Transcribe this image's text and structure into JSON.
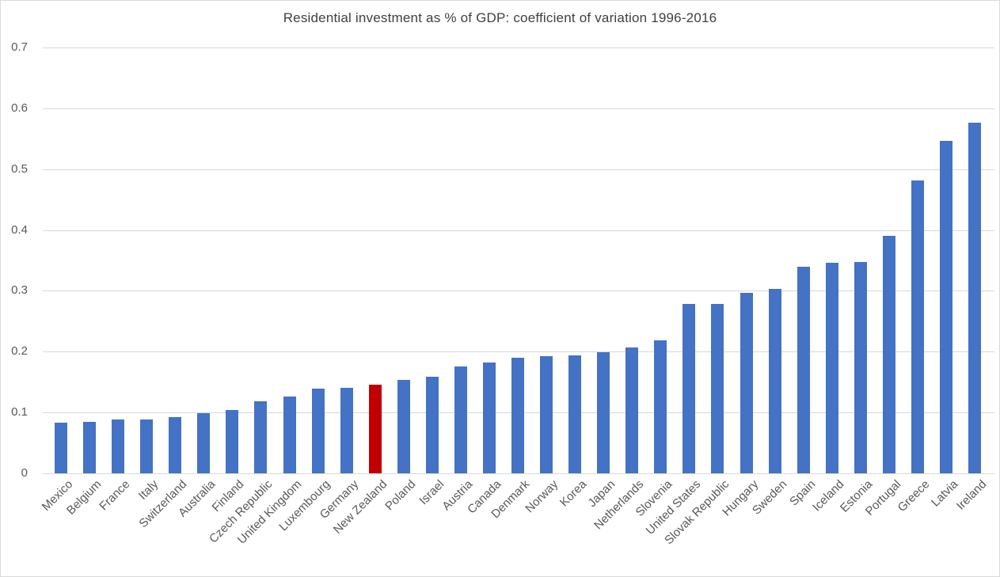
{
  "chart_data": {
    "type": "bar",
    "title": "Residential investment as % of GDP: coefficient of variation 1996-2016",
    "categories": [
      "Mexico",
      "Belgium",
      "France",
      "Italy",
      "Switzerland",
      "Australia",
      "Finland",
      "Czech Republic",
      "United Kingdom",
      "Luxembourg",
      "Germany",
      "New Zealand",
      "Poland",
      "Israel",
      "Austria",
      "Canada",
      "Denmark",
      "Norway",
      "Korea",
      "Japan",
      "Netherlands",
      "Slovenia",
      "United States",
      "Slovak Republic",
      "Hungary",
      "Sweden",
      "Spain",
      "Iceland",
      "Estonia",
      "Portugal",
      "Greece",
      "Latvia",
      "Ireland"
    ],
    "values": [
      0.083,
      0.084,
      0.089,
      0.089,
      0.093,
      0.099,
      0.104,
      0.118,
      0.126,
      0.139,
      0.141,
      0.146,
      0.154,
      0.159,
      0.176,
      0.182,
      0.19,
      0.192,
      0.194,
      0.199,
      0.207,
      0.219,
      0.278,
      0.278,
      0.297,
      0.303,
      0.339,
      0.346,
      0.347,
      0.39,
      0.482,
      0.547,
      0.577
    ],
    "highlight_category": "New Zealand",
    "xlabel": "",
    "ylabel": "",
    "y_ticks": [
      "0",
      "0.1",
      "0.2",
      "0.3",
      "0.4",
      "0.5",
      "0.6",
      "0.7"
    ],
    "ylim": [
      0,
      0.7
    ],
    "grid": true,
    "legend": "none",
    "colors": {
      "bar": "#4472C4",
      "highlight": "#C00000",
      "gridline": "#D9D9D9",
      "tick_label": "#595959",
      "title": "#404040"
    }
  }
}
